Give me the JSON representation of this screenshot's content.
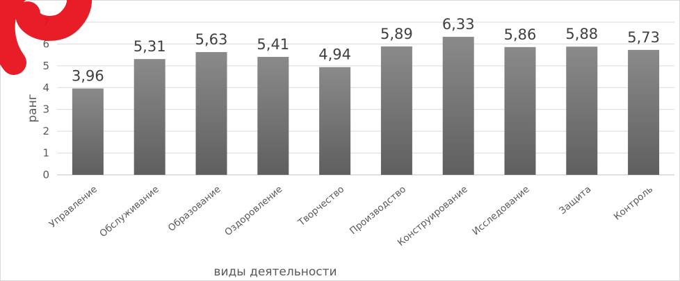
{
  "chart_data": {
    "type": "bar",
    "title": "",
    "xlabel": "виды деятельности",
    "ylabel": "ранг",
    "ylim": [
      0,
      7
    ],
    "yticks": [
      0,
      1,
      2,
      3,
      4,
      5,
      6,
      7
    ],
    "grid": true,
    "legend": "none",
    "bar_color": "#7a7a7a",
    "categories": [
      "Управление",
      "Обслуживание",
      "Образование",
      "Оздоровление",
      "Творчество",
      "Производство",
      "Конструирование",
      "Исследование",
      "Защита",
      "Контроль"
    ],
    "values": [
      3.96,
      5.31,
      5.63,
      5.41,
      4.94,
      5.89,
      6.33,
      5.86,
      5.88,
      5.73
    ],
    "data_labels": [
      "3,96",
      "5,31",
      "5,63",
      "5,41",
      "4,94",
      "5,89",
      "6,33",
      "5,86",
      "5,88",
      "5,73"
    ]
  },
  "watermark": {
    "color": "#e8111b"
  }
}
